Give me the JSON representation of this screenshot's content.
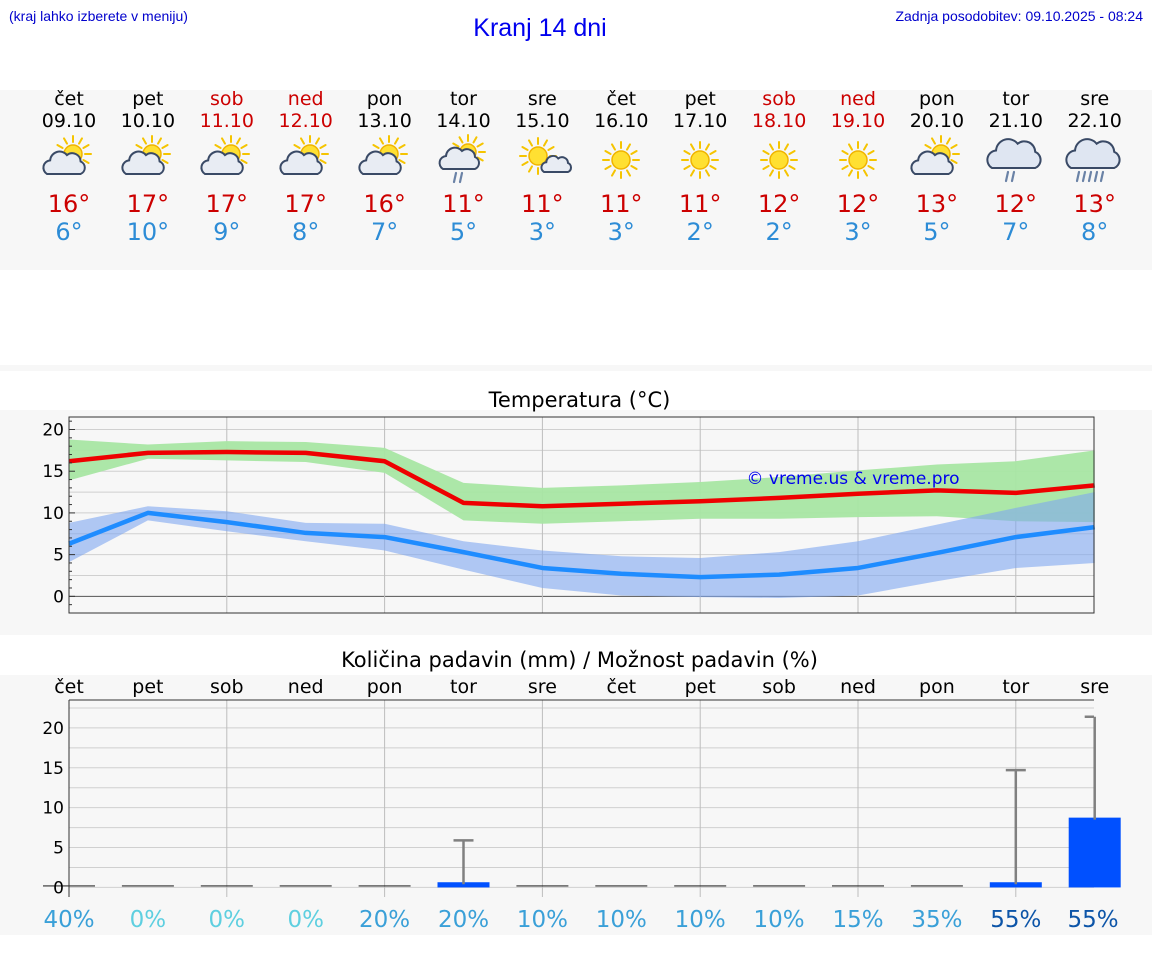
{
  "header": {
    "location_hint": "(kraj lahko izberete v meniju)",
    "title": "Kranj 14 dni",
    "last_update": "Zadnja posodobitev: 09.10.2025 - 08:24"
  },
  "days": [
    {
      "name": "čet",
      "date": "09.10",
      "weekend": false,
      "icon": "sun-cloud-icon",
      "tmax": "16°",
      "tmin": "6°"
    },
    {
      "name": "pet",
      "date": "10.10",
      "weekend": false,
      "icon": "sun-cloud-icon",
      "tmax": "17°",
      "tmin": "10°"
    },
    {
      "name": "sob",
      "date": "11.10",
      "weekend": true,
      "icon": "sun-cloud-icon",
      "tmax": "17°",
      "tmin": "9°"
    },
    {
      "name": "ned",
      "date": "12.10",
      "weekend": true,
      "icon": "sun-cloud-icon",
      "tmax": "17°",
      "tmin": "8°"
    },
    {
      "name": "pon",
      "date": "13.10",
      "weekend": false,
      "icon": "sun-cloud-icon",
      "tmax": "16°",
      "tmin": "7°"
    },
    {
      "name": "tor",
      "date": "14.10",
      "weekend": false,
      "icon": "sun-cloud-rain-icon",
      "tmax": "11°",
      "tmin": "5°"
    },
    {
      "name": "sre",
      "date": "15.10",
      "weekend": false,
      "icon": "sun-small-cloud-icon",
      "tmax": "11°",
      "tmin": "3°"
    },
    {
      "name": "čet",
      "date": "16.10",
      "weekend": false,
      "icon": "sun-icon",
      "tmax": "11°",
      "tmin": "3°"
    },
    {
      "name": "pet",
      "date": "17.10",
      "weekend": false,
      "icon": "sun-icon",
      "tmax": "11°",
      "tmin": "2°"
    },
    {
      "name": "sob",
      "date": "18.10",
      "weekend": true,
      "icon": "sun-icon",
      "tmax": "12°",
      "tmin": "2°"
    },
    {
      "name": "ned",
      "date": "19.10",
      "weekend": true,
      "icon": "sun-icon",
      "tmax": "12°",
      "tmin": "3°"
    },
    {
      "name": "pon",
      "date": "20.10",
      "weekend": false,
      "icon": "sun-cloud-icon",
      "tmax": "13°",
      "tmin": "5°"
    },
    {
      "name": "tor",
      "date": "21.10",
      "weekend": false,
      "icon": "cloud-rain-icon",
      "tmax": "12°",
      "tmin": "7°"
    },
    {
      "name": "sre",
      "date": "22.10",
      "weekend": false,
      "icon": "cloud-heavy-rain-icon",
      "tmax": "13°",
      "tmin": "8°"
    }
  ],
  "colors": {
    "max_line": "#ee0000",
    "max_band": "#a8e6a3",
    "min_line": "#1e8cff",
    "min_band": "#7fa6f0",
    "precip_bar": "#0050ff",
    "whisker": "#808080",
    "grid": "#cccccc"
  },
  "chart_data": [
    {
      "type": "line",
      "title": "Temperatura (°C)",
      "watermark": "© vreme.us & vreme.pro",
      "x": [
        0,
        1,
        2,
        3,
        4,
        5,
        6,
        7,
        8,
        9,
        10,
        11,
        12,
        13
      ],
      "ylim": [
        -2,
        21.5
      ],
      "yticks": [
        0,
        5,
        10,
        15,
        20
      ],
      "series": [
        {
          "name": "max",
          "values": [
            16.2,
            17.2,
            17.3,
            17.2,
            16.2,
            11.2,
            10.8,
            11.1,
            11.4,
            11.8,
            12.3,
            12.7,
            12.4,
            13.3
          ],
          "band_low": [
            13.9,
            16.5,
            16.3,
            16.1,
            14.8,
            9.1,
            8.7,
            9.0,
            9.3,
            9.3,
            9.5,
            9.6,
            9.0,
            8.9
          ],
          "band_high": [
            18.8,
            18.2,
            18.6,
            18.5,
            17.8,
            13.6,
            13.0,
            13.3,
            13.7,
            14.3,
            15.1,
            15.8,
            16.2,
            17.5
          ]
        },
        {
          "name": "min",
          "values": [
            6.3,
            10.0,
            8.9,
            7.6,
            7.1,
            5.3,
            3.4,
            2.7,
            2.3,
            2.6,
            3.4,
            5.2,
            7.1,
            8.3
          ],
          "band_low": [
            4.1,
            9.1,
            7.8,
            6.6,
            5.5,
            3.2,
            1.0,
            0.1,
            -0.1,
            -0.2,
            0.1,
            1.8,
            3.4,
            4.0
          ],
          "band_high": [
            8.8,
            10.8,
            10.2,
            8.8,
            8.7,
            6.6,
            5.5,
            4.8,
            4.6,
            5.3,
            6.6,
            8.6,
            10.6,
            12.5
          ]
        }
      ]
    },
    {
      "type": "bar",
      "title": "Količina padavin (mm) / Možnost padavin (%)",
      "categories": [
        "čet",
        "pet",
        "sob",
        "ned",
        "pon",
        "tor",
        "sre",
        "čet",
        "pet",
        "sob",
        "ned",
        "pon",
        "tor",
        "sre"
      ],
      "values": [
        0,
        0,
        0,
        0,
        0,
        0.4,
        0,
        0,
        0,
        0,
        0,
        0,
        0.4,
        8.5
      ],
      "whisker_max": [
        0,
        0,
        0,
        0,
        0,
        5.9,
        0,
        0,
        0,
        0,
        0,
        0,
        14.7,
        21.4
      ],
      "ylim": [
        -1.2,
        23.5
      ],
      "yticks": [
        0,
        5,
        10,
        15,
        20
      ],
      "probability": [
        "40%",
        "0%",
        "0%",
        "0%",
        "20%",
        "20%",
        "10%",
        "10%",
        "10%",
        "10%",
        "15%",
        "35%",
        "55%",
        "55%"
      ]
    }
  ]
}
